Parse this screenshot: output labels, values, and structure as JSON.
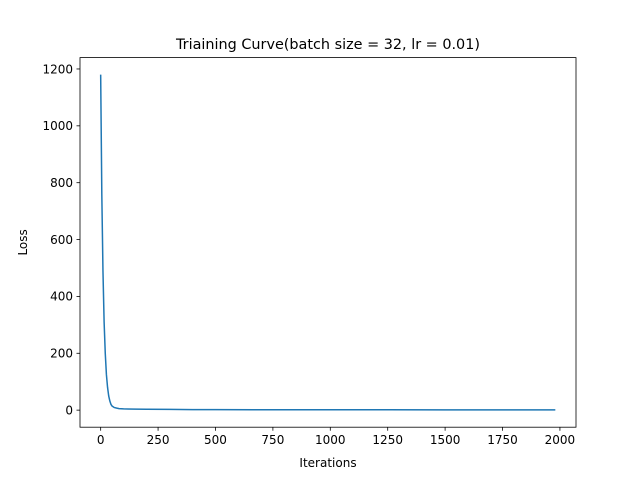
{
  "chart_data": {
    "type": "line",
    "title": "Triaining Curve(batch size = 32, lr = 0.01)",
    "xlabel": "Iterations",
    "ylabel": "Loss",
    "xlim": [
      -90,
      2070
    ],
    "ylim": [
      -60,
      1240
    ],
    "xticks": [
      0,
      250,
      500,
      750,
      1000,
      1250,
      1500,
      1750,
      2000
    ],
    "yticks": [
      0,
      200,
      400,
      600,
      800,
      1000,
      1200
    ],
    "grid": false,
    "legend": "none",
    "colors": {
      "line": "#1f77b4"
    },
    "series": [
      {
        "x": [
          0,
          5,
          10,
          15,
          20,
          25,
          30,
          35,
          40,
          45,
          50,
          60,
          70,
          80,
          100,
          150,
          200,
          300,
          400,
          500,
          750,
          1000,
          1250,
          1500,
          1750,
          1980
        ],
        "y": [
          1180,
          760,
          490,
          310,
          200,
          125,
          80,
          50,
          32,
          20,
          14,
          9,
          7,
          5.5,
          4.5,
          3.5,
          3,
          2.5,
          2,
          1.8,
          1.5,
          1.3,
          1.2,
          1.1,
          1.0,
          1.0
        ]
      }
    ]
  }
}
